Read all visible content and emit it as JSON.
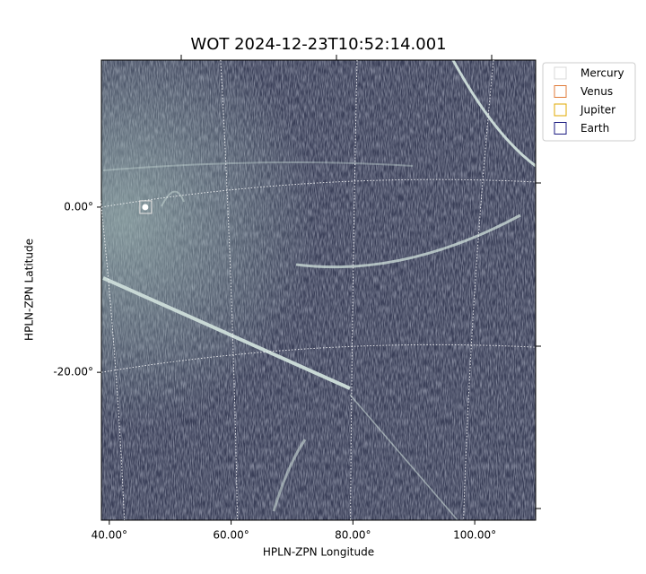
{
  "chart_data": {
    "type": "scatter",
    "title": "WOT 2024-12-23T10:52:14.001",
    "xlabel": "HPLN-ZPN Longitude",
    "ylabel": "HPLN-ZPN Latitude",
    "xlim": [
      38.7,
      110
    ],
    "ylim": [
      -37.9,
      17.8
    ],
    "xticks": [
      {
        "value": 40,
        "label": "40.00°"
      },
      {
        "value": 60,
        "label": "60.00°"
      },
      {
        "value": 80,
        "label": "80.00°"
      },
      {
        "value": 100,
        "label": "100.00°"
      }
    ],
    "yticks": [
      {
        "value": 0,
        "label": "0.00°"
      },
      {
        "value": -20,
        "label": "-20.00°"
      }
    ],
    "grid": true,
    "legend": "upper right",
    "series": [
      {
        "name": "Mercury",
        "color": "#d9d9d9",
        "x": [
          45.9
        ],
        "y": [
          0.0
        ]
      },
      {
        "name": "Venus",
        "color": "#e07b39",
        "x": [],
        "y": []
      },
      {
        "name": "Jupiter",
        "color": "#e0a800",
        "x": [],
        "y": []
      },
      {
        "name": "Earth",
        "color": "#1a1a80",
        "x": [],
        "y": []
      }
    ]
  }
}
